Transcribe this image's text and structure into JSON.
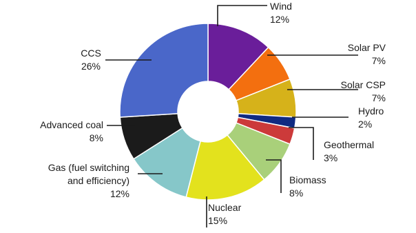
{
  "chart_data": {
    "type": "pie",
    "style": "donut",
    "unit": "%",
    "slices": [
      {
        "name": "Wind",
        "value": 12,
        "label": "12%",
        "color": "#6a1e9a"
      },
      {
        "name": "Solar PV",
        "value": 7,
        "label": "7%",
        "color": "#f36f0f"
      },
      {
        "name": "Solar CSP",
        "value": 7,
        "label": "7%",
        "color": "#d6b21a"
      },
      {
        "name": "Hydro",
        "value": 2,
        "label": "2%",
        "color": "#102a82"
      },
      {
        "name": "Geothermal",
        "value": 3,
        "label": "3%",
        "color": "#cc3a3a"
      },
      {
        "name": "Biomass",
        "value": 8,
        "label": "8%",
        "color": "#a9d07a"
      },
      {
        "name": "Nuclear",
        "value": 15,
        "label": "15%",
        "color": "#e3e21d"
      },
      {
        "name": "Gas (fuel switching and efficiency)",
        "name_lines": [
          "Gas (fuel switching",
          "and efficiency)"
        ],
        "value": 12,
        "label": "12%",
        "color": "#86c7c9"
      },
      {
        "name": "Advanced coal",
        "value": 8,
        "label": "8%",
        "color": "#1b1b1b"
      },
      {
        "name": "CCS",
        "value": 26,
        "label": "26%",
        "color": "#4a67c9"
      }
    ]
  }
}
